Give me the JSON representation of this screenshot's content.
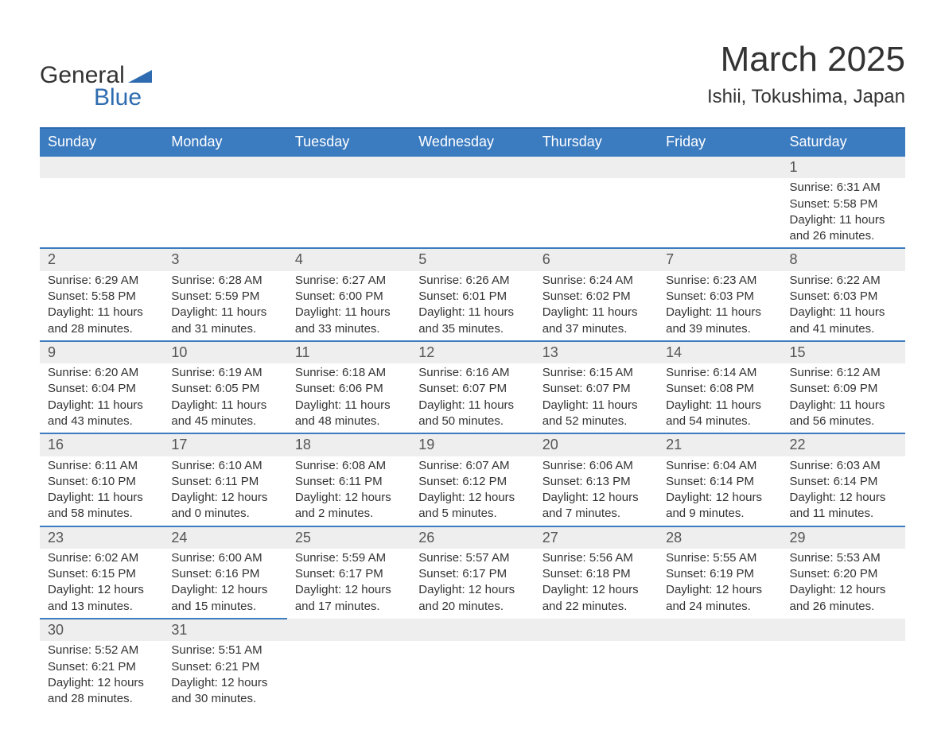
{
  "brand": {
    "word1": "General",
    "word2": "Blue",
    "brand_color": "#2e6bb0"
  },
  "title": "March 2025",
  "location": "Ishii, Tokushima, Japan",
  "colors": {
    "header_bg": "#3b7bc0",
    "header_text": "#ffffff",
    "row_divider": "#3b7bc0",
    "daynum_bg": "#eeeeee",
    "text": "#333333"
  },
  "day_headers": [
    "Sunday",
    "Monday",
    "Tuesday",
    "Wednesday",
    "Thursday",
    "Friday",
    "Saturday"
  ],
  "weeks": [
    [
      null,
      null,
      null,
      null,
      null,
      null,
      {
        "n": "1",
        "sunrise": "Sunrise: 6:31 AM",
        "sunset": "Sunset: 5:58 PM",
        "daylight": "Daylight: 11 hours and 26 minutes."
      }
    ],
    [
      {
        "n": "2",
        "sunrise": "Sunrise: 6:29 AM",
        "sunset": "Sunset: 5:58 PM",
        "daylight": "Daylight: 11 hours and 28 minutes."
      },
      {
        "n": "3",
        "sunrise": "Sunrise: 6:28 AM",
        "sunset": "Sunset: 5:59 PM",
        "daylight": "Daylight: 11 hours and 31 minutes."
      },
      {
        "n": "4",
        "sunrise": "Sunrise: 6:27 AM",
        "sunset": "Sunset: 6:00 PM",
        "daylight": "Daylight: 11 hours and 33 minutes."
      },
      {
        "n": "5",
        "sunrise": "Sunrise: 6:26 AM",
        "sunset": "Sunset: 6:01 PM",
        "daylight": "Daylight: 11 hours and 35 minutes."
      },
      {
        "n": "6",
        "sunrise": "Sunrise: 6:24 AM",
        "sunset": "Sunset: 6:02 PM",
        "daylight": "Daylight: 11 hours and 37 minutes."
      },
      {
        "n": "7",
        "sunrise": "Sunrise: 6:23 AM",
        "sunset": "Sunset: 6:03 PM",
        "daylight": "Daylight: 11 hours and 39 minutes."
      },
      {
        "n": "8",
        "sunrise": "Sunrise: 6:22 AM",
        "sunset": "Sunset: 6:03 PM",
        "daylight": "Daylight: 11 hours and 41 minutes."
      }
    ],
    [
      {
        "n": "9",
        "sunrise": "Sunrise: 6:20 AM",
        "sunset": "Sunset: 6:04 PM",
        "daylight": "Daylight: 11 hours and 43 minutes."
      },
      {
        "n": "10",
        "sunrise": "Sunrise: 6:19 AM",
        "sunset": "Sunset: 6:05 PM",
        "daylight": "Daylight: 11 hours and 45 minutes."
      },
      {
        "n": "11",
        "sunrise": "Sunrise: 6:18 AM",
        "sunset": "Sunset: 6:06 PM",
        "daylight": "Daylight: 11 hours and 48 minutes."
      },
      {
        "n": "12",
        "sunrise": "Sunrise: 6:16 AM",
        "sunset": "Sunset: 6:07 PM",
        "daylight": "Daylight: 11 hours and 50 minutes."
      },
      {
        "n": "13",
        "sunrise": "Sunrise: 6:15 AM",
        "sunset": "Sunset: 6:07 PM",
        "daylight": "Daylight: 11 hours and 52 minutes."
      },
      {
        "n": "14",
        "sunrise": "Sunrise: 6:14 AM",
        "sunset": "Sunset: 6:08 PM",
        "daylight": "Daylight: 11 hours and 54 minutes."
      },
      {
        "n": "15",
        "sunrise": "Sunrise: 6:12 AM",
        "sunset": "Sunset: 6:09 PM",
        "daylight": "Daylight: 11 hours and 56 minutes."
      }
    ],
    [
      {
        "n": "16",
        "sunrise": "Sunrise: 6:11 AM",
        "sunset": "Sunset: 6:10 PM",
        "daylight": "Daylight: 11 hours and 58 minutes."
      },
      {
        "n": "17",
        "sunrise": "Sunrise: 6:10 AM",
        "sunset": "Sunset: 6:11 PM",
        "daylight": "Daylight: 12 hours and 0 minutes."
      },
      {
        "n": "18",
        "sunrise": "Sunrise: 6:08 AM",
        "sunset": "Sunset: 6:11 PM",
        "daylight": "Daylight: 12 hours and 2 minutes."
      },
      {
        "n": "19",
        "sunrise": "Sunrise: 6:07 AM",
        "sunset": "Sunset: 6:12 PM",
        "daylight": "Daylight: 12 hours and 5 minutes."
      },
      {
        "n": "20",
        "sunrise": "Sunrise: 6:06 AM",
        "sunset": "Sunset: 6:13 PM",
        "daylight": "Daylight: 12 hours and 7 minutes."
      },
      {
        "n": "21",
        "sunrise": "Sunrise: 6:04 AM",
        "sunset": "Sunset: 6:14 PM",
        "daylight": "Daylight: 12 hours and 9 minutes."
      },
      {
        "n": "22",
        "sunrise": "Sunrise: 6:03 AM",
        "sunset": "Sunset: 6:14 PM",
        "daylight": "Daylight: 12 hours and 11 minutes."
      }
    ],
    [
      {
        "n": "23",
        "sunrise": "Sunrise: 6:02 AM",
        "sunset": "Sunset: 6:15 PM",
        "daylight": "Daylight: 12 hours and 13 minutes."
      },
      {
        "n": "24",
        "sunrise": "Sunrise: 6:00 AM",
        "sunset": "Sunset: 6:16 PM",
        "daylight": "Daylight: 12 hours and 15 minutes."
      },
      {
        "n": "25",
        "sunrise": "Sunrise: 5:59 AM",
        "sunset": "Sunset: 6:17 PM",
        "daylight": "Daylight: 12 hours and 17 minutes."
      },
      {
        "n": "26",
        "sunrise": "Sunrise: 5:57 AM",
        "sunset": "Sunset: 6:17 PM",
        "daylight": "Daylight: 12 hours and 20 minutes."
      },
      {
        "n": "27",
        "sunrise": "Sunrise: 5:56 AM",
        "sunset": "Sunset: 6:18 PM",
        "daylight": "Daylight: 12 hours and 22 minutes."
      },
      {
        "n": "28",
        "sunrise": "Sunrise: 5:55 AM",
        "sunset": "Sunset: 6:19 PM",
        "daylight": "Daylight: 12 hours and 24 minutes."
      },
      {
        "n": "29",
        "sunrise": "Sunrise: 5:53 AM",
        "sunset": "Sunset: 6:20 PM",
        "daylight": "Daylight: 12 hours and 26 minutes."
      }
    ],
    [
      {
        "n": "30",
        "sunrise": "Sunrise: 5:52 AM",
        "sunset": "Sunset: 6:21 PM",
        "daylight": "Daylight: 12 hours and 28 minutes."
      },
      {
        "n": "31",
        "sunrise": "Sunrise: 5:51 AM",
        "sunset": "Sunset: 6:21 PM",
        "daylight": "Daylight: 12 hours and 30 minutes."
      },
      null,
      null,
      null,
      null,
      null
    ]
  ]
}
